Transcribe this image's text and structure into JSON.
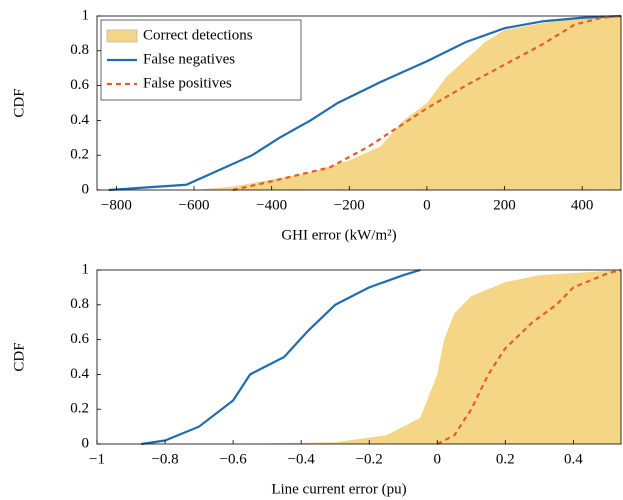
{
  "chart_data": [
    {
      "type": "line",
      "xlabel": "GHI error (kW/m²)",
      "ylabel": "CDF",
      "legend": "upper left",
      "xlim": [
        -850,
        500
      ],
      "ylim": [
        0,
        1
      ],
      "xticks": [
        {
          "value": -800,
          "label": "−800"
        },
        {
          "value": -600,
          "label": "−600"
        },
        {
          "value": -400,
          "label": "−400"
        },
        {
          "value": -200,
          "label": "−200"
        },
        0,
        200,
        400
      ],
      "yticks": [
        0,
        0.2,
        0.4,
        0.6,
        0.8,
        1
      ],
      "series": [
        {
          "name": "Correct detections",
          "color": "#f5d687",
          "style": "area",
          "x": [
            -600,
            -500,
            -300,
            -200,
            -120,
            -60,
            0,
            50,
            100,
            150,
            200,
            300,
            400,
            500
          ],
          "values": [
            0,
            0.02,
            0.1,
            0.17,
            0.25,
            0.4,
            0.5,
            0.65,
            0.75,
            0.85,
            0.92,
            0.96,
            0.99,
            1
          ]
        },
        {
          "name": "False negatives",
          "color": "#1f6db0",
          "style": "solid",
          "x": [
            -820,
            -620,
            -550,
            -450,
            -380,
            -300,
            -230,
            -120,
            0,
            100,
            200,
            300,
            400,
            500
          ],
          "values": [
            0,
            0.03,
            0.1,
            0.2,
            0.3,
            0.4,
            0.5,
            0.62,
            0.74,
            0.85,
            0.93,
            0.97,
            0.99,
            1
          ]
        },
        {
          "name": "False positives",
          "color": "#e0602a",
          "style": "dashed",
          "x": [
            -500,
            -400,
            -250,
            -150,
            0,
            100,
            200,
            300,
            380,
            450,
            500
          ],
          "values": [
            0,
            0.05,
            0.13,
            0.25,
            0.47,
            0.6,
            0.72,
            0.84,
            0.95,
            0.99,
            1
          ]
        }
      ]
    },
    {
      "type": "line",
      "xlabel": "Line current error (pu)",
      "ylabel": "CDF",
      "xlim": [
        -1,
        0.54
      ],
      "ylim": [
        0,
        1
      ],
      "xticks": [
        {
          "value": -1,
          "label": "−1"
        },
        {
          "value": -0.8,
          "label": "−0.8"
        },
        {
          "value": -0.6,
          "label": "−0.6"
        },
        {
          "value": -0.4,
          "label": "−0.4"
        },
        {
          "value": -0.2,
          "label": "−0.2"
        },
        0,
        0.2,
        0.4
      ],
      "yticks": [
        0,
        0.2,
        0.4,
        0.6,
        0.8,
        1
      ],
      "series": [
        {
          "color": "#f5d687",
          "style": "area",
          "x": [
            -0.6,
            -0.3,
            -0.15,
            -0.05,
            0,
            0.02,
            0.05,
            0.1,
            0.2,
            0.3,
            0.54
          ],
          "values": [
            0,
            0.01,
            0.05,
            0.15,
            0.4,
            0.6,
            0.75,
            0.85,
            0.93,
            0.97,
            1
          ]
        },
        {
          "color": "#1f6db0",
          "style": "solid",
          "x": [
            -0.87,
            -0.8,
            -0.7,
            -0.6,
            -0.55,
            -0.45,
            -0.38,
            -0.3,
            -0.2,
            -0.1,
            -0.05
          ],
          "values": [
            0,
            0.02,
            0.1,
            0.25,
            0.4,
            0.5,
            0.65,
            0.8,
            0.9,
            0.97,
            1
          ]
        },
        {
          "color": "#e0602a",
          "style": "dashed",
          "x": [
            0,
            0.05,
            0.1,
            0.15,
            0.2,
            0.28,
            0.35,
            0.4,
            0.5,
            0.54
          ],
          "values": [
            0,
            0.05,
            0.2,
            0.4,
            0.55,
            0.7,
            0.8,
            0.9,
            0.98,
            1
          ]
        }
      ]
    }
  ]
}
